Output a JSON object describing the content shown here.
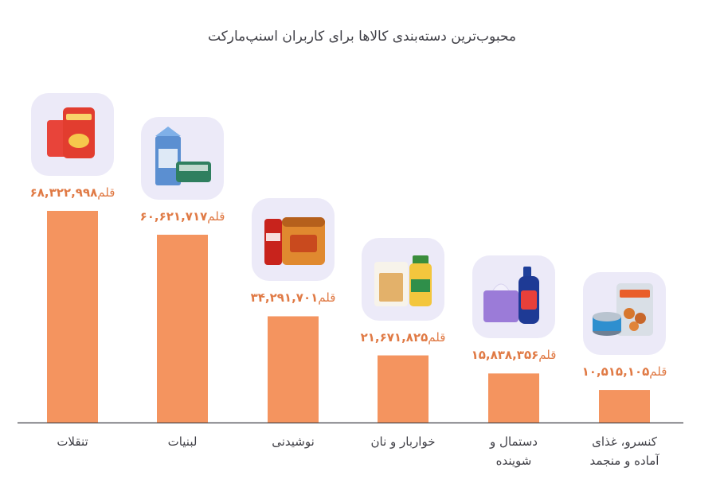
{
  "chart_data": {
    "type": "bar",
    "title": "محبوب‌ترین دسته‌بندی کالاها برای کاربران اسنپ‌مارکت",
    "unit": "قلم",
    "categories": [
      [
        "تنقلات"
      ],
      [
        "لبنیات"
      ],
      [
        "نوشیدنی"
      ],
      [
        "خواربار و نان"
      ],
      [
        "دستمال و",
        "شوینده"
      ],
      [
        "کنسرو، غذای",
        "آماده و منجمد"
      ]
    ],
    "values": [
      68322998,
      60621717,
      34291701,
      21671825,
      15838356,
      10515105
    ],
    "value_labels": [
      "۶۸,۳۲۲,۹۹۸",
      "۶۰,۶۲۱,۷۱۷",
      "۳۴,۲۹۱,۷۰۱",
      "۲۱,۶۷۱,۸۲۵",
      "۱۵,۸۳۸,۳۵۶",
      "۱۰,۵۱۵,۱۰۵"
    ],
    "product_icons": [
      "chips-bags-icon",
      "milk-carton-icon",
      "cola-can-and-tin-icon",
      "pasta-and-oil-bottle-icon",
      "tissue-box-and-detergent-icon",
      "canned-fish-and-frozen-food-icon"
    ],
    "ylim": [
      0,
      68322998
    ],
    "grid": false,
    "legend": "none",
    "colors": {
      "bar": "#f4945f",
      "label": "#e07a45",
      "axis": "#3f3f46",
      "card": "#eceaf8",
      "text": "#3f3f46"
    }
  }
}
